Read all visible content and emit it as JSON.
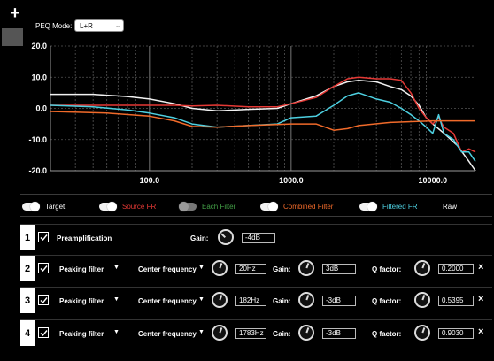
{
  "toolbar": {
    "add_label": "+"
  },
  "peq": {
    "mode_label": "PEQ Mode:",
    "mode_value": "L+R"
  },
  "chart_data": {
    "type": "line",
    "xscale": "log",
    "xlim": [
      20,
      20000
    ],
    "ylim": [
      -20,
      20
    ],
    "yticks": [
      "20.0",
      "10.0",
      "0.0",
      "-10.0",
      "-20.0"
    ],
    "xticks": [
      "100.0",
      "1000.0",
      "10000.0"
    ],
    "grid": true,
    "series": [
      {
        "name": "Target",
        "color": "#f2f2f2",
        "points": [
          [
            20,
            4.5
          ],
          [
            40,
            4.5
          ],
          [
            70,
            3.8
          ],
          [
            100,
            3
          ],
          [
            150,
            1.5
          ],
          [
            200,
            0
          ],
          [
            300,
            -0.8
          ],
          [
            500,
            -0.3
          ],
          [
            800,
            0
          ],
          [
            1000,
            1.5
          ],
          [
            1500,
            4
          ],
          [
            2000,
            7
          ],
          [
            2500,
            8.5
          ],
          [
            3000,
            9
          ],
          [
            4000,
            8.5
          ],
          [
            5000,
            7
          ],
          [
            6000,
            6
          ],
          [
            7000,
            4
          ],
          [
            8000,
            1
          ],
          [
            9000,
            -3
          ],
          [
            10000,
            -5
          ],
          [
            12000,
            -8
          ],
          [
            15000,
            -12
          ],
          [
            18000,
            -17
          ],
          [
            20000,
            -20
          ]
        ]
      },
      {
        "name": "Source FR",
        "color": "#e53935",
        "points": [
          [
            20,
            1
          ],
          [
            40,
            1
          ],
          [
            70,
            1
          ],
          [
            100,
            1
          ],
          [
            150,
            1
          ],
          [
            200,
            0.8
          ],
          [
            300,
            1
          ],
          [
            500,
            0.5
          ],
          [
            800,
            0.5
          ],
          [
            1000,
            1.5
          ],
          [
            1500,
            3.5
          ],
          [
            2000,
            7
          ],
          [
            2500,
            9.5
          ],
          [
            3000,
            10
          ],
          [
            4000,
            9.5
          ],
          [
            5000,
            9.5
          ],
          [
            6000,
            9
          ],
          [
            7000,
            5
          ],
          [
            8000,
            0
          ],
          [
            9000,
            -3
          ],
          [
            10000,
            -5
          ],
          [
            11000,
            -3
          ],
          [
            12000,
            -6
          ],
          [
            14000,
            -8
          ],
          [
            16000,
            -14
          ],
          [
            18000,
            -13
          ],
          [
            20000,
            -14
          ]
        ]
      },
      {
        "name": "Filtered FR",
        "color": "#4dd0e1",
        "points": [
          [
            20,
            1
          ],
          [
            40,
            0.5
          ],
          [
            70,
            -0.5
          ],
          [
            100,
            -1.5
          ],
          [
            150,
            -3
          ],
          [
            200,
            -5
          ],
          [
            300,
            -6
          ],
          [
            500,
            -5.5
          ],
          [
            800,
            -5
          ],
          [
            1000,
            -3
          ],
          [
            1500,
            -2.5
          ],
          [
            2000,
            1
          ],
          [
            2500,
            4
          ],
          [
            3000,
            5
          ],
          [
            4000,
            3
          ],
          [
            5000,
            2
          ],
          [
            6000,
            0
          ],
          [
            7000,
            -2
          ],
          [
            8000,
            -4
          ],
          [
            9000,
            -6
          ],
          [
            10000,
            -8
          ],
          [
            11000,
            -2
          ],
          [
            12000,
            -8
          ],
          [
            14000,
            -10
          ],
          [
            16000,
            -14
          ],
          [
            18000,
            -14
          ],
          [
            20000,
            -17
          ]
        ]
      },
      {
        "name": "Combined Filter",
        "color": "#f06a2a",
        "points": [
          [
            20,
            -1
          ],
          [
            50,
            -1.5
          ],
          [
            100,
            -2.5
          ],
          [
            150,
            -4
          ],
          [
            200,
            -5.8
          ],
          [
            300,
            -6
          ],
          [
            500,
            -5.5
          ],
          [
            1000,
            -5
          ],
          [
            1500,
            -5
          ],
          [
            2000,
            -7
          ],
          [
            2500,
            -6.5
          ],
          [
            3000,
            -5.5
          ],
          [
            5000,
            -4.5
          ],
          [
            10000,
            -4
          ],
          [
            20000,
            -4
          ]
        ]
      }
    ]
  },
  "legend": [
    {
      "label": "Target",
      "color": "#ffffff",
      "on": true
    },
    {
      "label": "Source FR",
      "color": "#e53935",
      "on": true
    },
    {
      "label": "Each Filter",
      "color": "#43a047",
      "on": false
    },
    {
      "label": "Combined Filter",
      "color": "#f06a2a",
      "on": true
    },
    {
      "label": "Filtered FR",
      "color": "#4dd0e1",
      "on": true
    },
    {
      "label": "Raw",
      "color": "#ffffff",
      "on": false
    }
  ],
  "preamp": {
    "index": "1",
    "label": "Preamplification",
    "gain_label": "Gain:",
    "gain_value": "-4dB"
  },
  "filters": [
    {
      "index": "2",
      "type": "Peaking filter",
      "freq_label": "Center frequency",
      "freq": "20Hz",
      "gain_label": "Gain:",
      "gain": "3dB",
      "q_label": "Q factor:",
      "q": "0.2000",
      "close": "×"
    },
    {
      "index": "3",
      "type": "Peaking filter",
      "freq_label": "Center frequency",
      "freq": "182Hz",
      "gain_label": "Gain:",
      "gain": "-3dB",
      "q_label": "Q factor:",
      "q": "0.5395",
      "close": "×"
    },
    {
      "index": "4",
      "type": "Peaking filter",
      "freq_label": "Center frequency",
      "freq": "1783Hz",
      "gain_label": "Gain:",
      "gain": "-3dB",
      "q_label": "Q factor:",
      "q": "0.9030",
      "close": "×"
    }
  ]
}
